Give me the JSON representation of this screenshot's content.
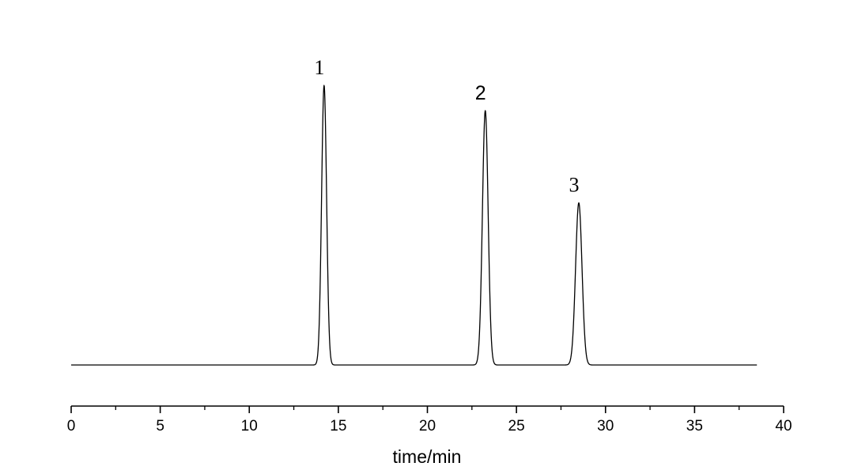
{
  "chart_data": {
    "type": "line",
    "title": "",
    "xlabel": "time/min",
    "ylabel": "",
    "xlim": [
      0,
      40
    ],
    "x_major_ticks": [
      0,
      5,
      10,
      15,
      20,
      25,
      30,
      35,
      40
    ],
    "x_minor_ticks": [
      2.5,
      7.5,
      12.5,
      17.5,
      22.5,
      27.5,
      32.5,
      37.5
    ],
    "x_tick_labels": [
      "0",
      "5",
      "10",
      "15",
      "20",
      "25",
      "30",
      "35",
      "40"
    ],
    "y_axis_visible": false,
    "grid": false,
    "legend": "none",
    "trace_range": [
      0,
      38.5
    ],
    "line_color": "#000000",
    "baseline": 0,
    "peaks": [
      {
        "label": "1",
        "retention_time": 14.2,
        "height": 1.0,
        "width": 0.14
      },
      {
        "label": "2",
        "retention_time": 23.25,
        "height": 0.91,
        "width": 0.16
      },
      {
        "label": "3",
        "retention_time": 28.5,
        "height": 0.58,
        "width": 0.18
      }
    ]
  }
}
